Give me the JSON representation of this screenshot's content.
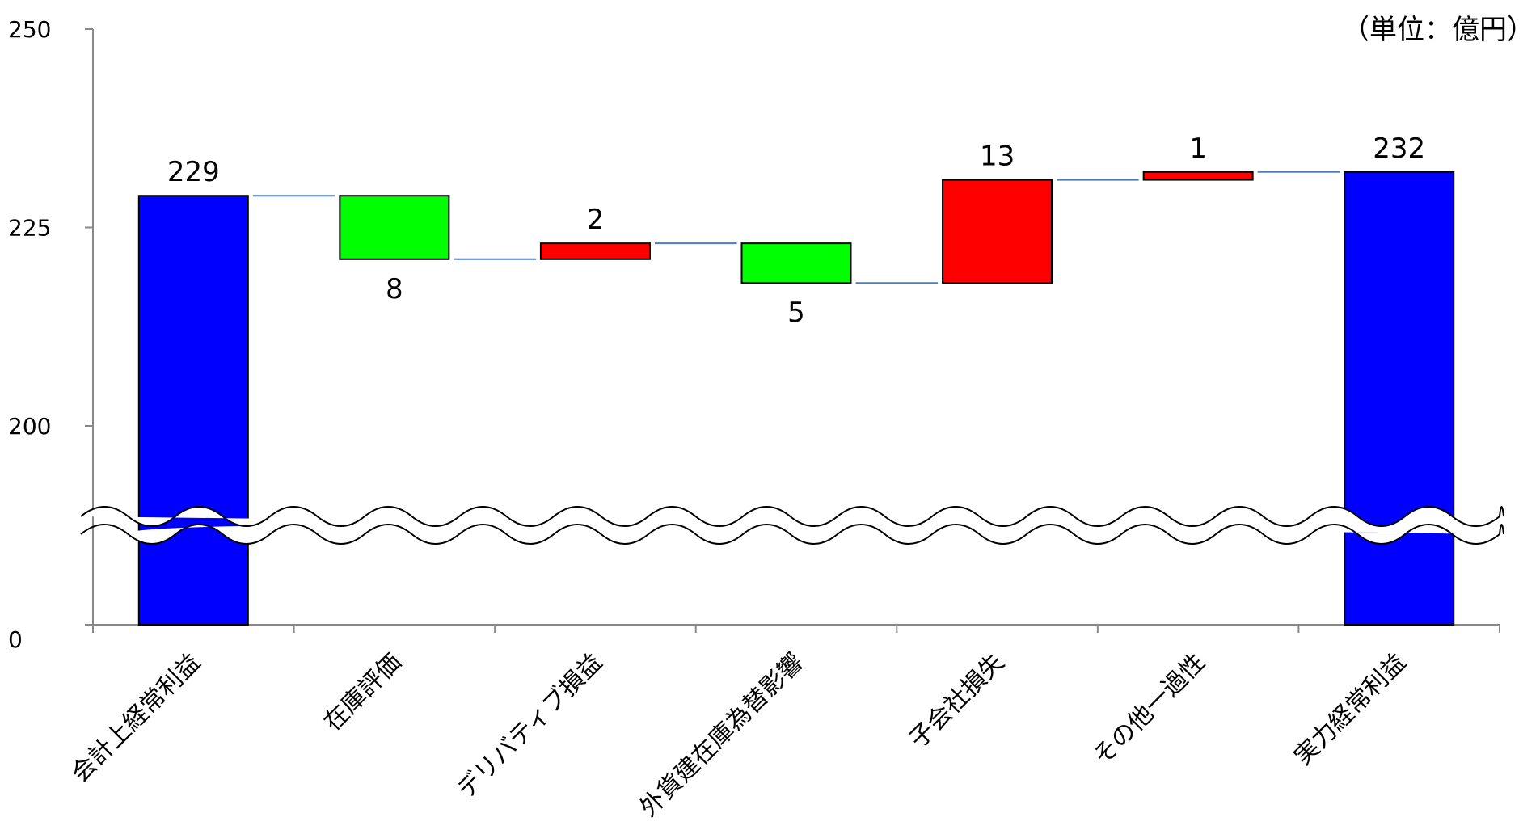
{
  "chart_data": {
    "type": "bar",
    "subtype": "waterfall",
    "unit_label": "（単位：億円）",
    "categories": [
      "会計上経常利益",
      "在庫評価",
      "デリバティブ損益",
      "外貨建在庫為替影響",
      "子会社損失",
      "その他一過性",
      "実力経常利益"
    ],
    "bars": [
      {
        "category": "会計上経常利益",
        "kind": "total",
        "start": 0,
        "end": 229,
        "label": "229",
        "color": "#0000ff"
      },
      {
        "category": "在庫評価",
        "kind": "decrease",
        "start": 229,
        "end": 221,
        "label": "8",
        "color": "#00ff00"
      },
      {
        "category": "デリバティブ損益",
        "kind": "increase",
        "start": 221,
        "end": 223,
        "label": "2",
        "color": "#ff0000"
      },
      {
        "category": "外貨建在庫為替影響",
        "kind": "decrease",
        "start": 223,
        "end": 218,
        "label": "5",
        "color": "#00ff00"
      },
      {
        "category": "子会社損失",
        "kind": "increase",
        "start": 218,
        "end": 231,
        "label": "13",
        "color": "#ff0000"
      },
      {
        "category": "その他一過性",
        "kind": "increase",
        "start": 231,
        "end": 232,
        "label": "1",
        "color": "#ff0000"
      },
      {
        "category": "実力経常利益",
        "kind": "total",
        "start": 0,
        "end": 232,
        "label": "232",
        "color": "#0000ff"
      }
    ],
    "y_ticks": [
      {
        "value": 250,
        "label": "250"
      },
      {
        "value": 225,
        "label": "225"
      },
      {
        "value": 200,
        "label": "200"
      },
      {
        "value": 0,
        "label": "0"
      }
    ],
    "ylim": [
      0,
      250
    ],
    "axis_break": true,
    "connector_color": "#4a7ebb",
    "legend": false,
    "grid": false
  }
}
